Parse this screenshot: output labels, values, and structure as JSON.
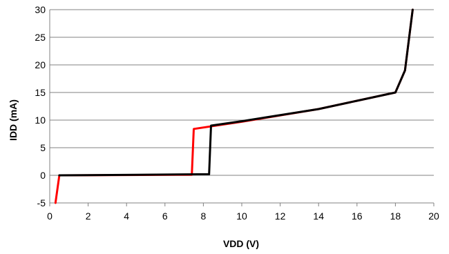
{
  "chart_data": {
    "type": "line",
    "title": "",
    "xlabel": "VDD (V)",
    "ylabel": "IDD (mA)",
    "xlim": [
      0,
      20
    ],
    "ylim": [
      -5,
      30
    ],
    "x_ticks": [
      0,
      2,
      4,
      6,
      8,
      10,
      12,
      14,
      16,
      18,
      20
    ],
    "y_ticks": [
      -5,
      0,
      5,
      10,
      15,
      20,
      25,
      30
    ],
    "grid": "horizontal",
    "legend": "none",
    "series": [
      {
        "color": "#ff0000",
        "x": [
          0.3,
          0.5,
          7.4,
          7.5,
          10,
          14,
          16,
          18,
          18.5,
          18.9
        ],
        "y": [
          -5,
          0,
          0.1,
          8.4,
          9.7,
          12,
          13.5,
          15,
          19,
          30
        ]
      },
      {
        "color": "#000000",
        "x": [
          0.5,
          4.5,
          8.3,
          8.4,
          10,
          14,
          16,
          18,
          18.5,
          18.9
        ],
        "y": [
          0,
          0.1,
          0.2,
          9.0,
          9.8,
          12,
          13.5,
          15,
          19,
          30
        ]
      }
    ]
  }
}
